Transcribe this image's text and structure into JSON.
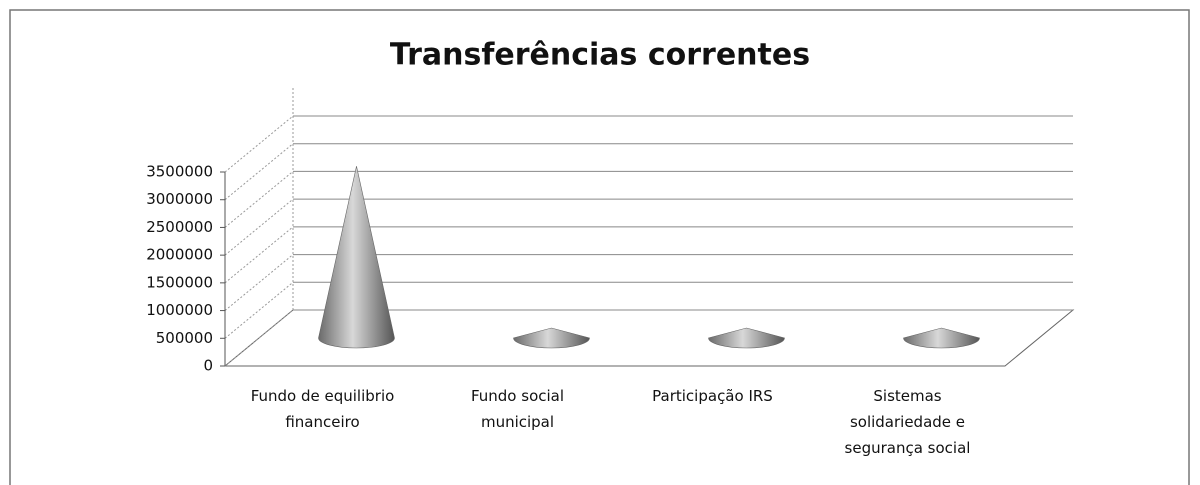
{
  "chart_data": {
    "type": "cone3d",
    "title": "Transferências correntes",
    "categories": [
      "Fundo de equilibrio financeiro",
      "Fundo social municipal",
      "Participação IRS",
      "Sistemas solidariedade e segurança social"
    ],
    "values": [
      3100000,
      30000,
      30000,
      30000
    ],
    "color": "#8c8c8c",
    "ylim": [
      0,
      3500000
    ],
    "yticks": [
      0,
      500000,
      1000000,
      1500000,
      2000000,
      2500000,
      3000000,
      3500000
    ],
    "grid": true
  }
}
